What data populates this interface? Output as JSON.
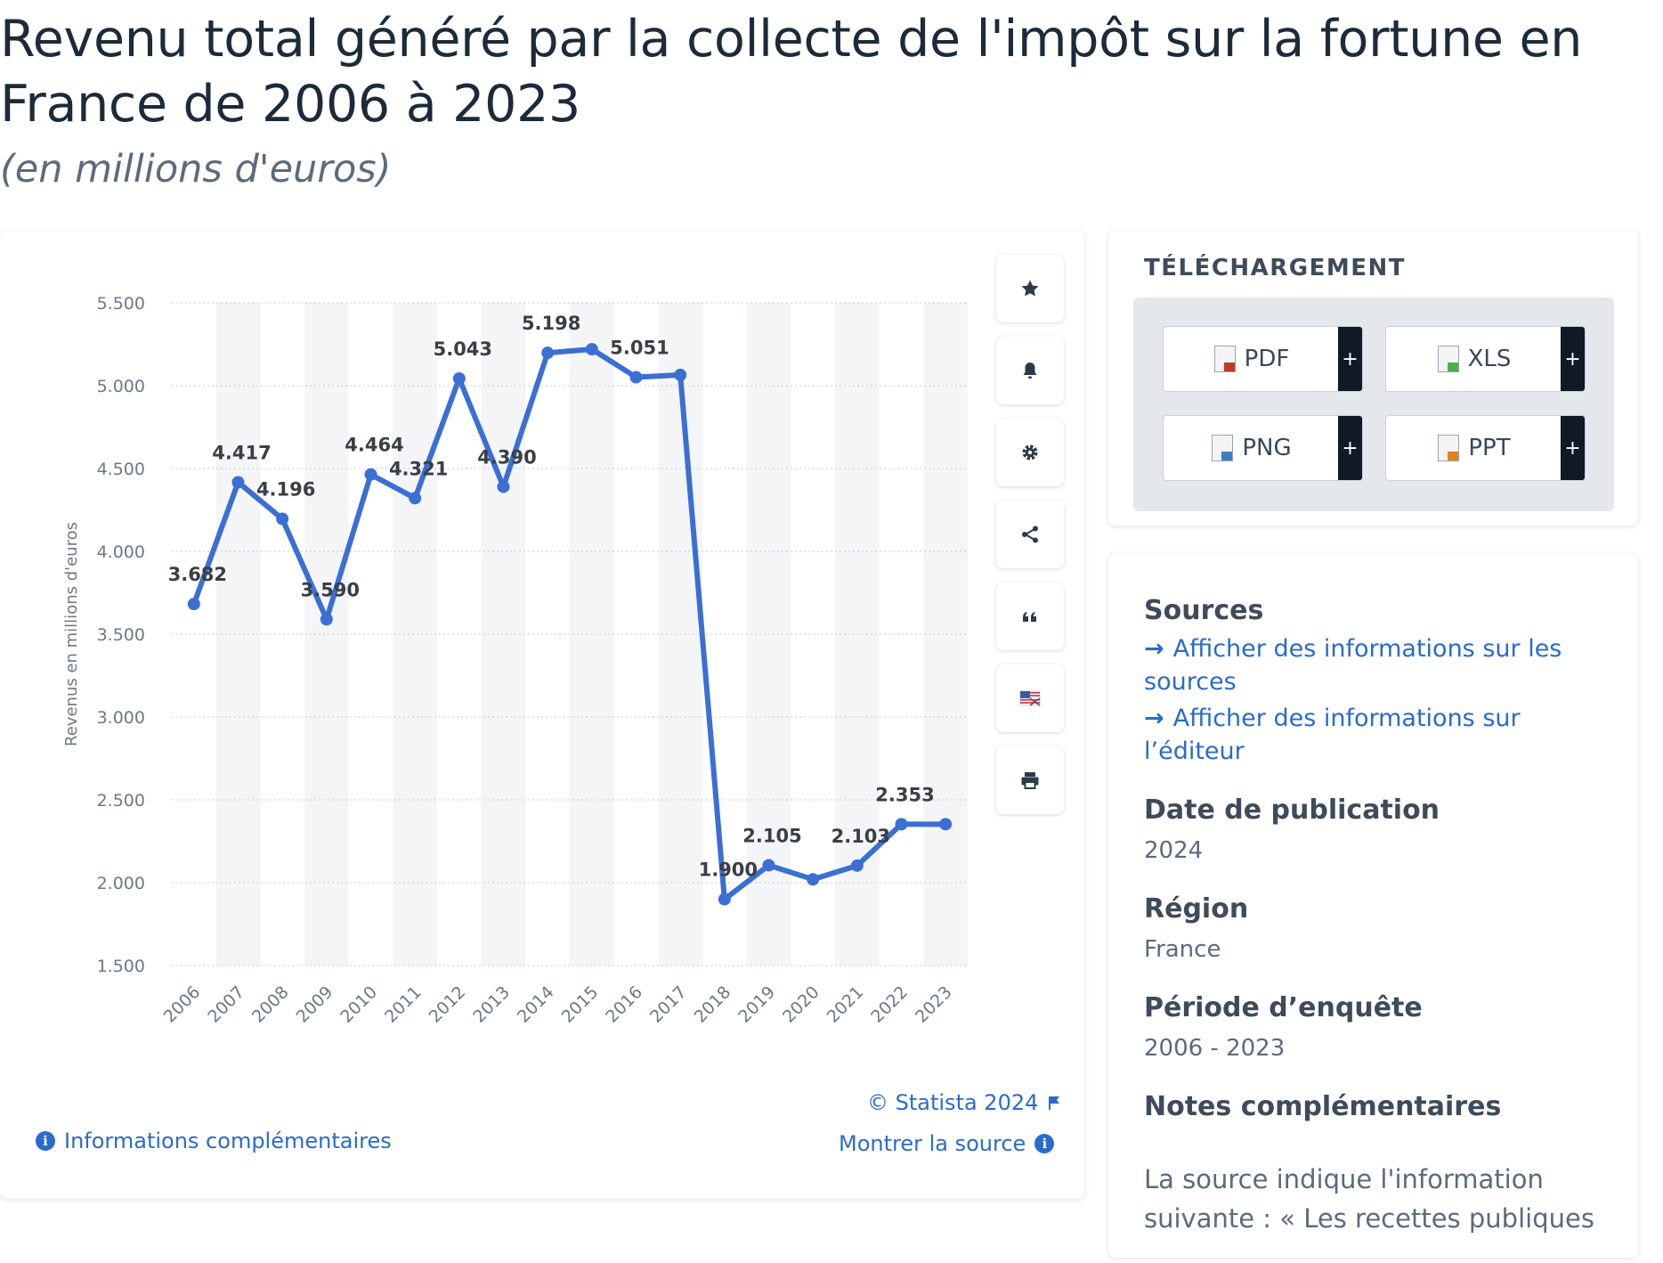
{
  "title": "Revenu total généré par la collecte de l'impôt sur la fortune en France de 2006 à 2023",
  "subtitle": "(en millions d'euros)",
  "chart_data": {
    "type": "line",
    "ylabel": "Revenus en millions d'euros",
    "ylim": [
      1500,
      5500
    ],
    "yticks": [
      1500,
      2000,
      2500,
      3000,
      3500,
      4000,
      4500,
      5000,
      5500
    ],
    "ytick_labels": [
      "1.500",
      "2.000",
      "2.500",
      "3.000",
      "3.500",
      "4.000",
      "4.500",
      "5.000",
      "5.500"
    ],
    "grid": true,
    "categories": [
      "2006",
      "2007",
      "2008",
      "2009",
      "2010",
      "2011",
      "2012",
      "2013",
      "2014",
      "2015",
      "2016",
      "2017",
      "2018",
      "2019",
      "2020",
      "2021",
      "2022",
      "2023"
    ],
    "values": [
      3682,
      4417,
      4196,
      3590,
      4464,
      4321,
      5043,
      4390,
      5198,
      5220,
      5051,
      5065,
      1900,
      2105,
      2020,
      2103,
      2353,
      2353
    ],
    "data_labels": [
      "3.682",
      "4.417",
      "4.196",
      "3.590",
      "4.464",
      "4.321",
      "5.043",
      "4.390",
      "5.198",
      "",
      "5.051",
      "",
      "1.900",
      "2.105",
      "",
      "2.103",
      "2.353",
      ""
    ],
    "color": "#3b6fd4"
  },
  "toolbar": [
    "star-icon",
    "bell-icon",
    "gear-icon",
    "share-icon",
    "quote-icon",
    "flag-icon",
    "print-icon"
  ],
  "footer": {
    "copyright": "© Statista 2024",
    "more_info": "Informations complémentaires",
    "show_source": "Montrer la source"
  },
  "download": {
    "heading": "TÉLÉCHARGEMENT",
    "buttons": [
      {
        "label": "PDF",
        "color": "#c0392b"
      },
      {
        "label": "XLS",
        "color": "#4caf50"
      },
      {
        "label": "PNG",
        "color": "#3f7fbf"
      },
      {
        "label": "PPT",
        "color": "#e67e22"
      }
    ],
    "plus": "+"
  },
  "info": {
    "sources_heading": "Sources",
    "source_link1": "Afficher des informations sur les sources",
    "source_link2": "Afficher des informations sur l’éditeur",
    "pub_date_heading": "Date de publication",
    "pub_date": "2024",
    "region_heading": "Région",
    "region": "France",
    "period_heading": "Période d’enquête",
    "period": "2006 - 2023",
    "notes_heading": "Notes complémentaires",
    "notes_text": "La source indique l'information suivante : « Les recettes publiques"
  }
}
